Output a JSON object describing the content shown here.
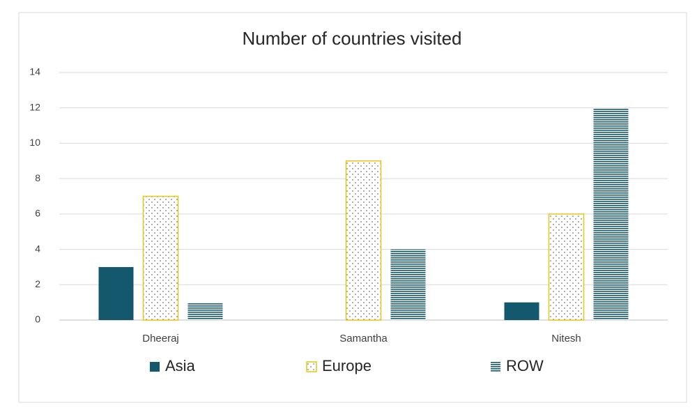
{
  "chart_data": {
    "type": "bar",
    "title": "Number of countries visited",
    "categories": [
      "Dheeraj",
      "Samantha",
      "Nitesh"
    ],
    "series": [
      {
        "name": "Asia",
        "color": "#14586e",
        "pattern": "solid",
        "values": [
          3,
          0,
          1
        ]
      },
      {
        "name": "Europe",
        "color": "#e6c619",
        "pattern": "dots",
        "values": [
          7,
          9,
          6
        ]
      },
      {
        "name": "ROW",
        "color": "#14586e",
        "pattern": "stripes",
        "values": [
          1,
          4,
          12
        ]
      }
    ],
    "ylim": [
      0,
      14
    ],
    "yticks": [
      0,
      2,
      4,
      6,
      8,
      10,
      12,
      14
    ],
    "grid": true,
    "legend": "bottom"
  }
}
